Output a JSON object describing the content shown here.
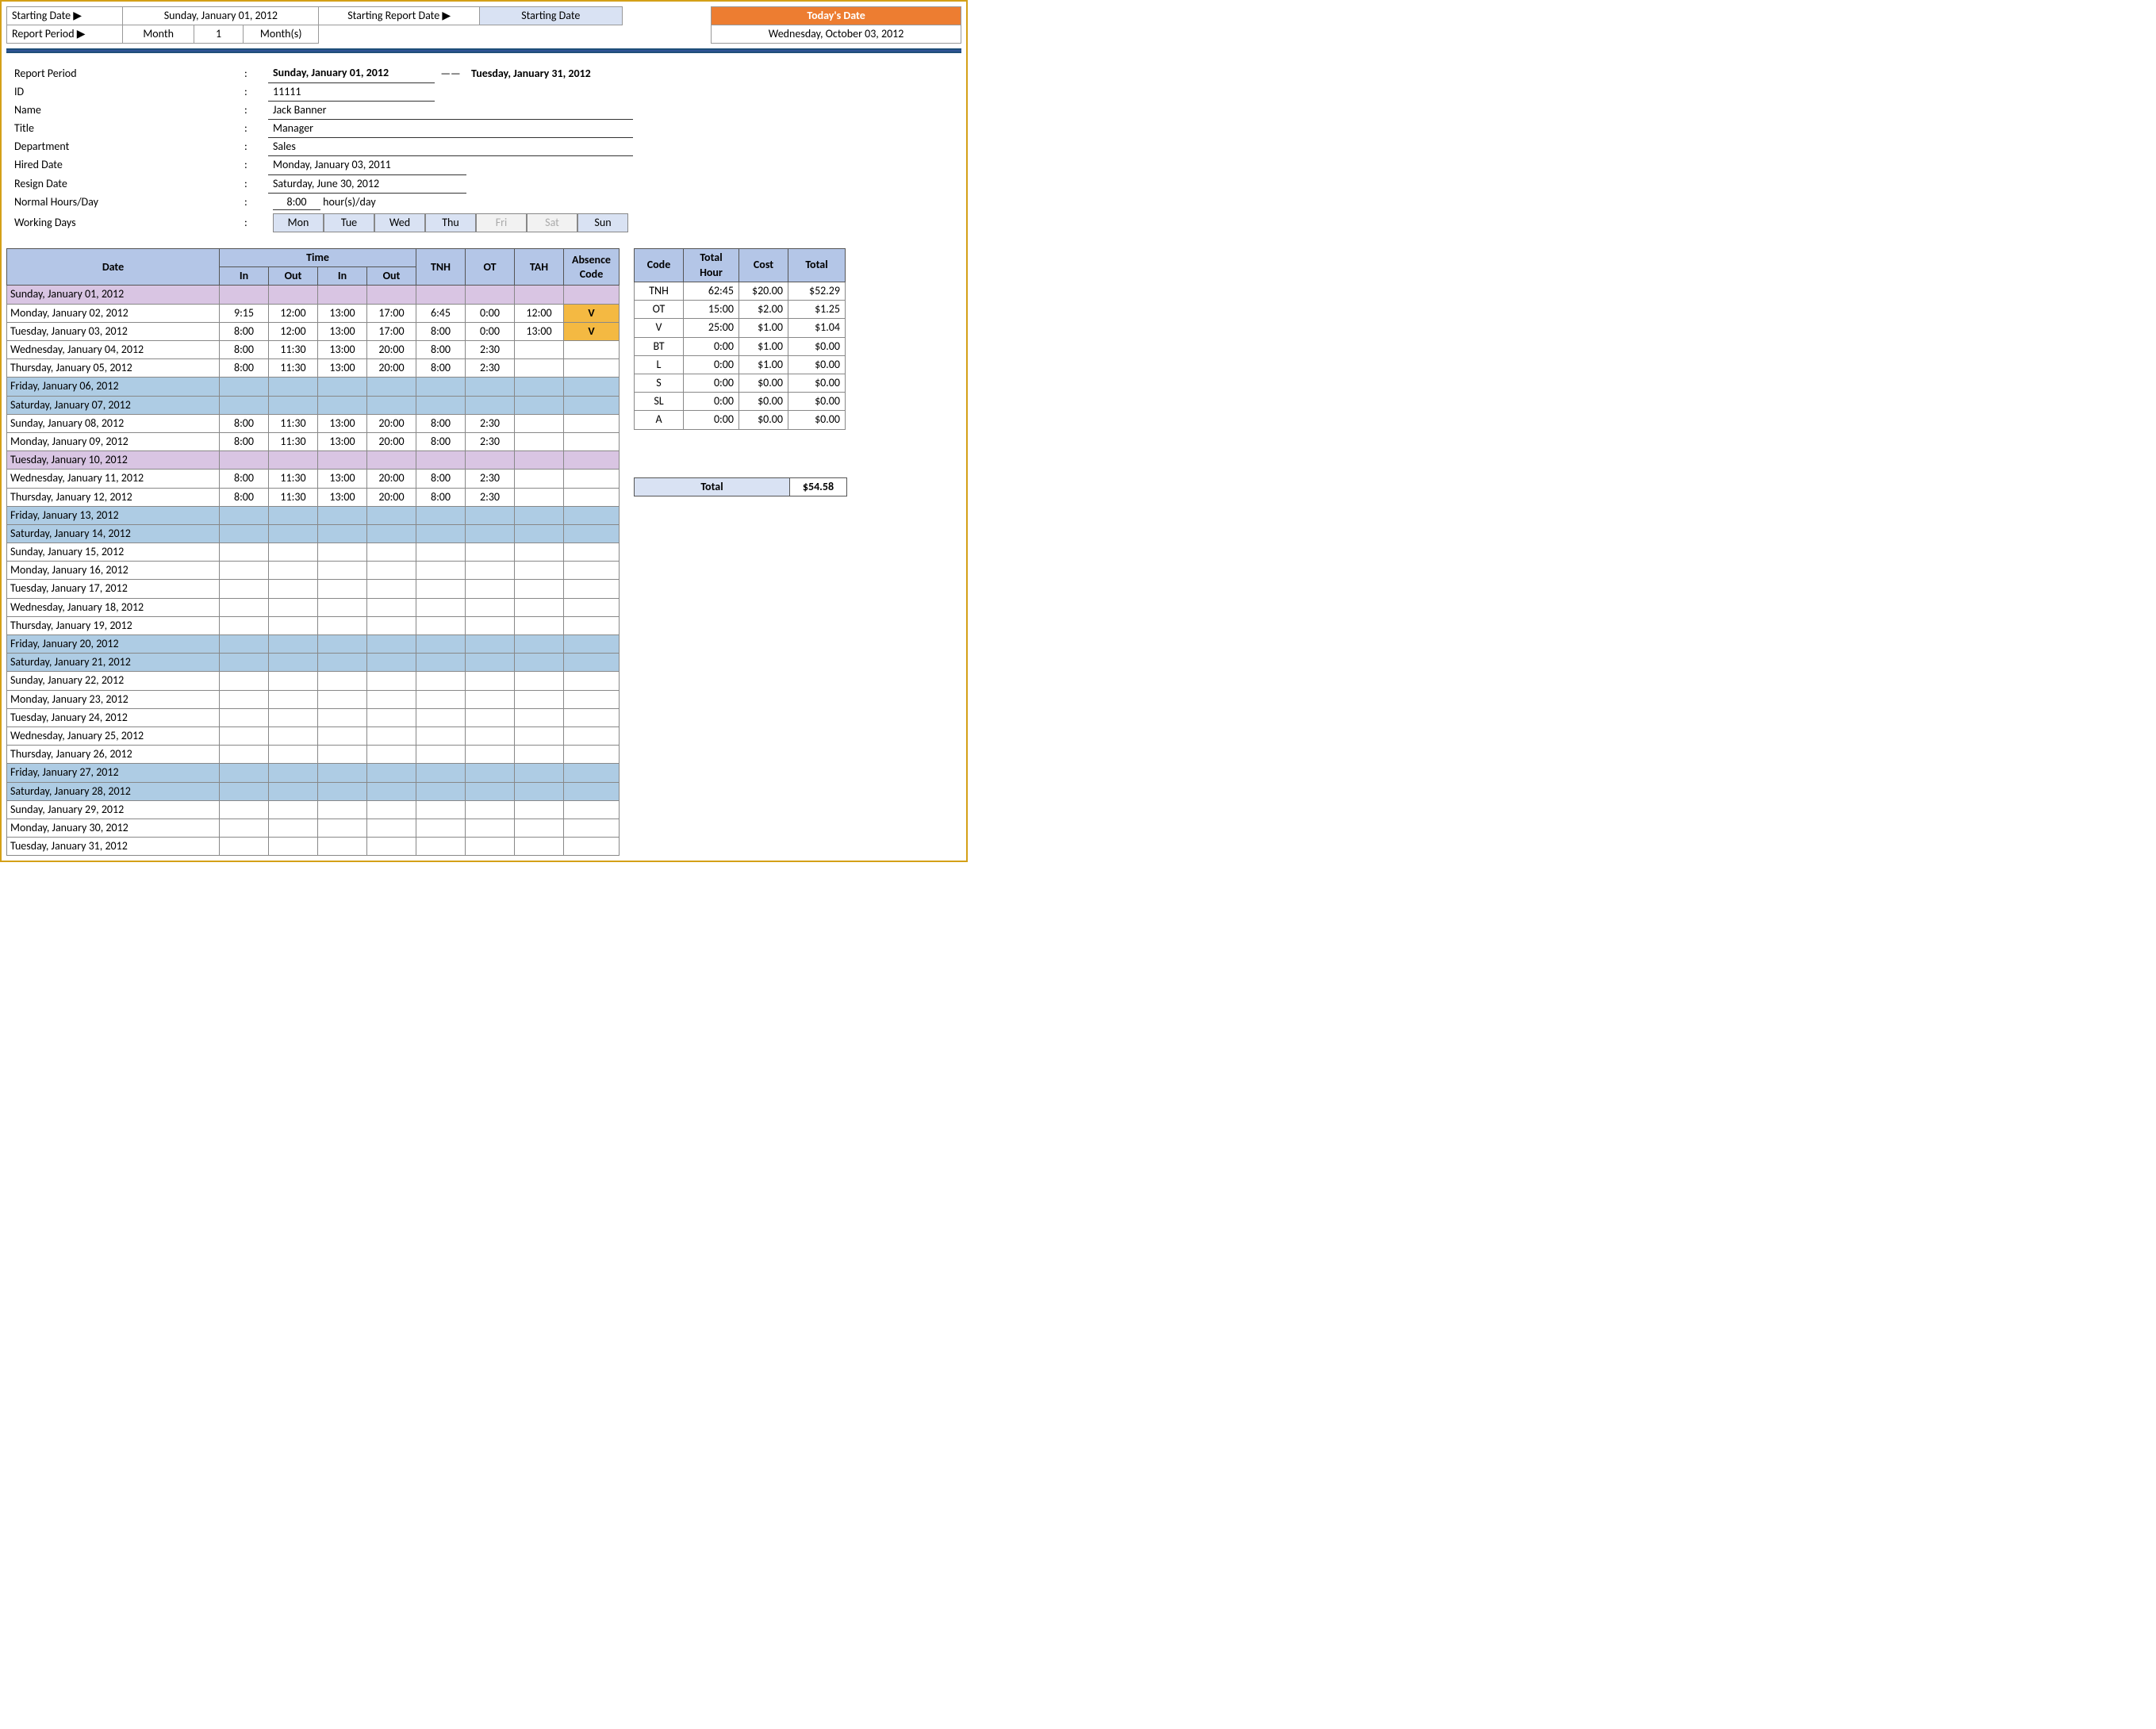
{
  "colors": {
    "header_blue": "#b4c6e7",
    "row_purple": "#d9c5e3",
    "row_blue": "#aecce4",
    "absence_code": "#f4b942",
    "orange": "#ed7d31",
    "light_blue": "#d9e2f3",
    "border": "#888888"
  },
  "topbar": {
    "starting_date_label": "Starting Date ▶",
    "starting_date_value": "Sunday, January 01, 2012",
    "report_period_label": "Report Period ▶",
    "rp_month_label": "Month",
    "rp_number": "1",
    "rp_months_label": "Month(s)",
    "starting_report_date_label": "Starting Report Date ▶",
    "starting_date_text": "Starting Date",
    "today_label": "Today's Date",
    "today_value": "Wednesday, October 03, 2012"
  },
  "info": {
    "report_period_label": "Report Period",
    "report_start": "Sunday, January 01, 2012",
    "report_dash": "——",
    "report_end": "Tuesday, January 31, 2012",
    "id_label": "ID",
    "id_value": "11111",
    "name_label": "Name",
    "name_value": "Jack Banner",
    "title_label": "Title",
    "title_value": "Manager",
    "department_label": "Department",
    "department_value": "Sales",
    "hired_label": "Hired Date",
    "hired_value": "Monday, January 03, 2011",
    "resign_label": "Resign Date",
    "resign_value": "Saturday, June 30, 2012",
    "normal_label": "Normal Hours/Day",
    "normal_hours": "8:00",
    "normal_unit": "hour(s)/day",
    "working_label": "Working Days",
    "days": [
      {
        "d": "Mon",
        "on": true
      },
      {
        "d": "Tue",
        "on": true
      },
      {
        "d": "Wed",
        "on": true
      },
      {
        "d": "Thu",
        "on": true
      },
      {
        "d": "Fri",
        "on": false
      },
      {
        "d": "Sat",
        "on": false
      },
      {
        "d": "Sun",
        "on": true
      }
    ]
  },
  "timesheet": {
    "headers": {
      "date": "Date",
      "time": "Time",
      "in1": "In",
      "out1": "Out",
      "in2": "In",
      "out2": "Out",
      "tnh": "TNH",
      "ot": "OT",
      "tah": "TAH",
      "ac": "Absence Code"
    },
    "rows": [
      {
        "date": "Sunday, January 01, 2012",
        "cls": "purple"
      },
      {
        "date": "Monday, January 02, 2012",
        "in1": "9:15",
        "out1": "12:00",
        "in2": "13:00",
        "out2": "17:00",
        "tnh": "6:45",
        "ot": "0:00",
        "tah": "12:00",
        "ac": "V"
      },
      {
        "date": "Tuesday, January 03, 2012",
        "in1": "8:00",
        "out1": "12:00",
        "in2": "13:00",
        "out2": "17:00",
        "tnh": "8:00",
        "ot": "0:00",
        "tah": "13:00",
        "ac": "V"
      },
      {
        "date": "Wednesday, January 04, 2012",
        "in1": "8:00",
        "out1": "11:30",
        "in2": "13:00",
        "out2": "20:00",
        "tnh": "8:00",
        "ot": "2:30"
      },
      {
        "date": "Thursday, January 05, 2012",
        "in1": "8:00",
        "out1": "11:30",
        "in2": "13:00",
        "out2": "20:00",
        "tnh": "8:00",
        "ot": "2:30"
      },
      {
        "date": "Friday, January 06, 2012",
        "cls": "blue"
      },
      {
        "date": "Saturday, January 07, 2012",
        "cls": "blue"
      },
      {
        "date": "Sunday, January 08, 2012",
        "in1": "8:00",
        "out1": "11:30",
        "in2": "13:00",
        "out2": "20:00",
        "tnh": "8:00",
        "ot": "2:30"
      },
      {
        "date": "Monday, January 09, 2012",
        "in1": "8:00",
        "out1": "11:30",
        "in2": "13:00",
        "out2": "20:00",
        "tnh": "8:00",
        "ot": "2:30"
      },
      {
        "date": "Tuesday, January 10, 2012",
        "cls": "purple"
      },
      {
        "date": "Wednesday, January 11, 2012",
        "in1": "8:00",
        "out1": "11:30",
        "in2": "13:00",
        "out2": "20:00",
        "tnh": "8:00",
        "ot": "2:30"
      },
      {
        "date": "Thursday, January 12, 2012",
        "in1": "8:00",
        "out1": "11:30",
        "in2": "13:00",
        "out2": "20:00",
        "tnh": "8:00",
        "ot": "2:30"
      },
      {
        "date": "Friday, January 13, 2012",
        "cls": "blue"
      },
      {
        "date": "Saturday, January 14, 2012",
        "cls": "blue"
      },
      {
        "date": "Sunday, January 15, 2012"
      },
      {
        "date": "Monday, January 16, 2012"
      },
      {
        "date": "Tuesday, January 17, 2012"
      },
      {
        "date": "Wednesday, January 18, 2012"
      },
      {
        "date": "Thursday, January 19, 2012"
      },
      {
        "date": "Friday, January 20, 2012",
        "cls": "blue"
      },
      {
        "date": "Saturday, January 21, 2012",
        "cls": "blue"
      },
      {
        "date": "Sunday, January 22, 2012"
      },
      {
        "date": "Monday, January 23, 2012"
      },
      {
        "date": "Tuesday, January 24, 2012"
      },
      {
        "date": "Wednesday, January 25, 2012"
      },
      {
        "date": "Thursday, January 26, 2012"
      },
      {
        "date": "Friday, January 27, 2012",
        "cls": "blue"
      },
      {
        "date": "Saturday, January 28, 2012",
        "cls": "blue"
      },
      {
        "date": "Sunday, January 29, 2012"
      },
      {
        "date": "Monday, January 30, 2012"
      },
      {
        "date": "Tuesday, January 31, 2012"
      }
    ]
  },
  "summary": {
    "headers": {
      "code": "Code",
      "th": "Total Hour",
      "cost": "Cost",
      "total": "Total"
    },
    "rows": [
      {
        "code": "TNH",
        "th": "62:45",
        "cost": "$20.00",
        "total": "$52.29"
      },
      {
        "code": "OT",
        "th": "15:00",
        "cost": "$2.00",
        "total": "$1.25"
      },
      {
        "code": "V",
        "th": "25:00",
        "cost": "$1.00",
        "total": "$1.04"
      },
      {
        "code": "BT",
        "th": "0:00",
        "cost": "$1.00",
        "total": "$0.00"
      },
      {
        "code": "L",
        "th": "0:00",
        "cost": "$1.00",
        "total": "$0.00"
      },
      {
        "code": "S",
        "th": "0:00",
        "cost": "$0.00",
        "total": "$0.00"
      },
      {
        "code": "SL",
        "th": "0:00",
        "cost": "$0.00",
        "total": "$0.00"
      },
      {
        "code": "A",
        "th": "0:00",
        "cost": "$0.00",
        "total": "$0.00"
      }
    ],
    "grand_label": "Total",
    "grand_total": "$54.58"
  }
}
